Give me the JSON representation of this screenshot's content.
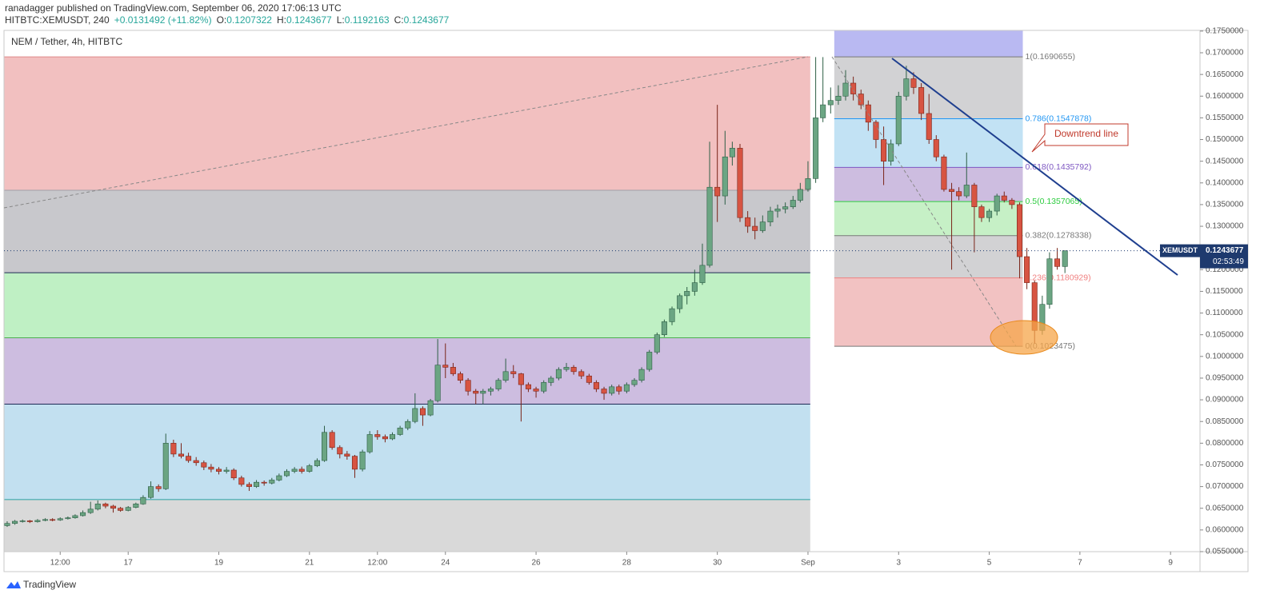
{
  "header": {
    "published": "ranadagger published on TradingView.com, September 06, 2020 17:06:13 UTC",
    "symbol": "HITBTC:XEMUSDT, 240",
    "change": "+0.0131492 (+11.82%)",
    "ohlc": [
      {
        "key": "O:",
        "value": "0.1207322"
      },
      {
        "key": "H:",
        "value": "0.1243677"
      },
      {
        "key": "L:",
        "value": "0.1192163"
      },
      {
        "key": "C:",
        "value": "0.1243677"
      }
    ]
  },
  "footer": {
    "brand": "TradingView"
  },
  "chart_data": {
    "type": "candlestick",
    "title": "NEM / Tether, 4h, HITBTC",
    "up_color": "#6ba583",
    "down_color": "#d75442",
    "xlim": [
      14.26,
      40.65
    ],
    "xticks": [
      {
        "value": 15.5,
        "label": "12:00"
      },
      17,
      19,
      21,
      {
        "value": 22.5,
        "label": "12:00"
      },
      24,
      26,
      28,
      30,
      {
        "value": 32,
        "label": "Sep"
      },
      {
        "value": 34,
        "label": "3"
      },
      {
        "value": 36,
        "label": "5"
      },
      {
        "value": 38,
        "label": "7"
      },
      {
        "value": 40,
        "label": "9"
      }
    ],
    "ylim": [
      0.055,
      0.17516
    ],
    "yticks": [
      {
        "value": 0.055,
        "label": "0.0550000"
      },
      {
        "value": 0.06,
        "label": "0.0600000"
      },
      {
        "value": 0.065,
        "label": "0.0650000"
      },
      {
        "value": 0.07,
        "label": "0.0700000"
      },
      {
        "value": 0.075,
        "label": "0.0750000"
      },
      {
        "value": 0.08,
        "label": "0.0800000"
      },
      {
        "value": 0.085,
        "label": "0.0850000"
      },
      {
        "value": 0.09,
        "label": "0.0900000"
      },
      {
        "value": 0.095,
        "label": "0.0950000"
      },
      {
        "value": 0.1,
        "label": "0.1000000"
      },
      {
        "value": 0.105,
        "label": "0.1050000"
      },
      {
        "value": 0.11,
        "label": "0.1100000"
      },
      {
        "value": 0.115,
        "label": "0.1150000"
      },
      {
        "value": 0.12,
        "label": "0.1200000"
      },
      {
        "value": 0.125,
        "label": "0.1250000"
      },
      {
        "value": 0.13,
        "label": "0.1300000"
      },
      {
        "value": 0.135,
        "label": "0.1350000"
      },
      {
        "value": 0.14,
        "label": "0.1400000"
      },
      {
        "value": 0.145,
        "label": "0.1450000"
      },
      {
        "value": 0.15,
        "label": "0.1500000"
      },
      {
        "value": 0.155,
        "label": "0.1550000"
      },
      {
        "value": 0.16,
        "label": "0.1600000"
      },
      {
        "value": 0.165,
        "label": "0.1650000"
      },
      {
        "value": 0.17,
        "label": "0.1700000"
      },
      {
        "value": 0.175,
        "label": "0.1750000"
      }
    ],
    "grid": false,
    "last_price": {
      "name": "XEMUSDT",
      "value": 0.1243677,
      "countdown": "02:53:49",
      "color": "#1e3a6e"
    },
    "left_fib": {
      "x_end": 32.05,
      "levels": [
        0.1690655,
        0.1383,
        0.1193,
        0.1043,
        0.089,
        0.067
      ],
      "fills": [
        "#f2c0c0",
        "#c8c8cc",
        "#bff0c4",
        "#cdbde0",
        "#c2e0f0",
        "#d9d9d9"
      ],
      "lines": [
        "#e08a8a",
        "#a0a0a8",
        "#1e2a55",
        "#4caf50",
        "#1e2a55",
        "#2a9fa0"
      ]
    },
    "right_fib": {
      "x": [
        32.58,
        36.74
      ],
      "top_fill": "#b9b9f2",
      "levels": [
        {
          "label": "1(0.1690655)",
          "value": 0.1690655,
          "color": "#787878",
          "fill": "#d2d2d4"
        },
        {
          "label": "0.786(0.1547878)",
          "value": 0.1547878,
          "color": "#2196f3",
          "fill": "#c2e2f4"
        },
        {
          "label": "0.618(0.1435792)",
          "value": 0.1435792,
          "color": "#7e57c2",
          "fill": "#cdbde0"
        },
        {
          "label": "0.5(0.1357065)",
          "value": 0.1357065,
          "color": "#2ecc40",
          "fill": "#c6f0c6"
        },
        {
          "label": "0.382(0.1278338)",
          "value": 0.1278338,
          "color": "#787878",
          "fill": "#d2d2d4"
        },
        {
          "label": "0.236(0.1180929)",
          "value": 0.1180929,
          "color": "#f08080",
          "fill": "#f2c2c2"
        },
        {
          "label": "0(0.1023475)",
          "value": 0.1023475,
          "color": "#787878",
          "fill": "none"
        }
      ]
    },
    "annotation": "Downtrend line",
    "candles": [
      [
        14.33,
        0.061,
        0.062,
        0.0607,
        0.0615
      ],
      [
        14.5,
        0.0615,
        0.0623,
        0.0612,
        0.062
      ],
      [
        14.67,
        0.062,
        0.0624,
        0.0617,
        0.0621
      ],
      [
        14.83,
        0.0621,
        0.0623,
        0.0616,
        0.0619
      ],
      [
        15,
        0.0619,
        0.0625,
        0.0617,
        0.0622
      ],
      [
        15.17,
        0.0622,
        0.0627,
        0.062,
        0.0624
      ],
      [
        15.33,
        0.0624,
        0.0627,
        0.062,
        0.0623
      ],
      [
        15.5,
        0.0623,
        0.0629,
        0.0621,
        0.0626
      ],
      [
        15.67,
        0.0626,
        0.0631,
        0.0624,
        0.0628
      ],
      [
        15.83,
        0.0628,
        0.0636,
        0.0626,
        0.0633
      ],
      [
        16,
        0.0633,
        0.0645,
        0.0631,
        0.064
      ],
      [
        16.17,
        0.064,
        0.0665,
        0.0637,
        0.0648
      ],
      [
        16.33,
        0.0648,
        0.0668,
        0.0645,
        0.066
      ],
      [
        16.5,
        0.066,
        0.0663,
        0.065,
        0.0655
      ],
      [
        16.67,
        0.0655,
        0.0658,
        0.064,
        0.065
      ],
      [
        16.83,
        0.065,
        0.0653,
        0.0642,
        0.0645
      ],
      [
        17,
        0.0645,
        0.0655,
        0.0643,
        0.0652
      ],
      [
        17.17,
        0.0652,
        0.0663,
        0.065,
        0.066
      ],
      [
        17.33,
        0.066,
        0.068,
        0.0658,
        0.0675
      ],
      [
        17.5,
        0.0675,
        0.0712,
        0.0672,
        0.07
      ],
      [
        17.67,
        0.07,
        0.0705,
        0.0688,
        0.0695
      ],
      [
        17.83,
        0.0695,
        0.0822,
        0.0692,
        0.08
      ],
      [
        18,
        0.08,
        0.0808,
        0.0768,
        0.0775
      ],
      [
        18.17,
        0.0775,
        0.08,
        0.0765,
        0.077
      ],
      [
        18.33,
        0.077,
        0.0778,
        0.0755,
        0.076
      ],
      [
        18.5,
        0.076,
        0.0768,
        0.0748,
        0.0755
      ],
      [
        18.67,
        0.0755,
        0.076,
        0.0738,
        0.0745
      ],
      [
        18.83,
        0.0745,
        0.0752,
        0.0733,
        0.074
      ],
      [
        19,
        0.074,
        0.0745,
        0.0728,
        0.0735
      ],
      [
        19.17,
        0.0735,
        0.0745,
        0.073,
        0.0738
      ],
      [
        19.33,
        0.0738,
        0.0742,
        0.0715,
        0.072
      ],
      [
        19.5,
        0.072,
        0.0725,
        0.07,
        0.0705
      ],
      [
        19.67,
        0.0705,
        0.071,
        0.069,
        0.07
      ],
      [
        19.83,
        0.07,
        0.0715,
        0.0697,
        0.071
      ],
      [
        20,
        0.071,
        0.0714,
        0.0702,
        0.0708
      ],
      [
        20.17,
        0.0708,
        0.072,
        0.0705,
        0.0715
      ],
      [
        20.33,
        0.0715,
        0.073,
        0.0712,
        0.0725
      ],
      [
        20.5,
        0.0725,
        0.074,
        0.0722,
        0.0735
      ],
      [
        20.67,
        0.0735,
        0.0745,
        0.0731,
        0.074
      ],
      [
        20.83,
        0.074,
        0.0746,
        0.073,
        0.0735
      ],
      [
        21,
        0.0735,
        0.0752,
        0.0732,
        0.0748
      ],
      [
        21.17,
        0.0748,
        0.0765,
        0.0745,
        0.076
      ],
      [
        21.33,
        0.076,
        0.084,
        0.0757,
        0.0825
      ],
      [
        21.5,
        0.0825,
        0.083,
        0.0785,
        0.079
      ],
      [
        21.67,
        0.079,
        0.0795,
        0.0765,
        0.0775
      ],
      [
        21.83,
        0.0775,
        0.0782,
        0.0762,
        0.077
      ],
      [
        22,
        0.077,
        0.0773,
        0.072,
        0.074
      ],
      [
        22.17,
        0.074,
        0.0785,
        0.0735,
        0.078
      ],
      [
        22.33,
        0.078,
        0.0828,
        0.0776,
        0.082
      ],
      [
        22.5,
        0.082,
        0.083,
        0.0808,
        0.0815
      ],
      [
        22.67,
        0.0815,
        0.082,
        0.0802,
        0.081
      ],
      [
        22.83,
        0.081,
        0.0825,
        0.0807,
        0.082
      ],
      [
        23,
        0.082,
        0.084,
        0.0817,
        0.0835
      ],
      [
        23.17,
        0.0835,
        0.0855,
        0.083,
        0.085
      ],
      [
        23.33,
        0.085,
        0.0915,
        0.0846,
        0.088
      ],
      [
        23.5,
        0.088,
        0.0885,
        0.084,
        0.0865
      ],
      [
        23.67,
        0.0865,
        0.0902,
        0.0862,
        0.0898
      ],
      [
        23.83,
        0.0898,
        0.104,
        0.0894,
        0.098
      ],
      [
        24,
        0.098,
        0.103,
        0.095,
        0.0975
      ],
      [
        24.17,
        0.0975,
        0.0985,
        0.0955,
        0.096
      ],
      [
        24.33,
        0.096,
        0.0965,
        0.0938,
        0.0945
      ],
      [
        24.5,
        0.0945,
        0.095,
        0.091,
        0.092
      ],
      [
        24.67,
        0.092,
        0.0925,
        0.089,
        0.0915
      ],
      [
        24.83,
        0.0915,
        0.0925,
        0.089,
        0.092
      ],
      [
        25,
        0.092,
        0.093,
        0.091,
        0.0925
      ],
      [
        25.17,
        0.0925,
        0.095,
        0.092,
        0.0945
      ],
      [
        25.33,
        0.0945,
        0.0995,
        0.094,
        0.0965
      ],
      [
        25.5,
        0.0965,
        0.098,
        0.095,
        0.096
      ],
      [
        25.67,
        0.096,
        0.0962,
        0.085,
        0.0935
      ],
      [
        25.83,
        0.0935,
        0.094,
        0.0918,
        0.0925
      ],
      [
        26,
        0.0925,
        0.093,
        0.0905,
        0.092
      ],
      [
        26.17,
        0.092,
        0.0945,
        0.0915,
        0.094
      ],
      [
        26.33,
        0.094,
        0.0955,
        0.0932,
        0.095
      ],
      [
        26.5,
        0.095,
        0.0975,
        0.0945,
        0.097
      ],
      [
        26.67,
        0.097,
        0.0985,
        0.0965,
        0.0975
      ],
      [
        26.83,
        0.0975,
        0.098,
        0.0958,
        0.0965
      ],
      [
        27,
        0.0965,
        0.097,
        0.0948,
        0.0955
      ],
      [
        27.17,
        0.0955,
        0.096,
        0.0935,
        0.094
      ],
      [
        27.33,
        0.094,
        0.0945,
        0.0918,
        0.0925
      ],
      [
        27.5,
        0.0925,
        0.093,
        0.09,
        0.0915
      ],
      [
        27.67,
        0.0915,
        0.0935,
        0.091,
        0.093
      ],
      [
        27.83,
        0.093,
        0.0935,
        0.0912,
        0.092
      ],
      [
        28,
        0.092,
        0.094,
        0.0915,
        0.0935
      ],
      [
        28.17,
        0.0935,
        0.095,
        0.093,
        0.0945
      ],
      [
        28.33,
        0.0945,
        0.0975,
        0.094,
        0.097
      ],
      [
        28.5,
        0.097,
        0.1015,
        0.0965,
        0.101
      ],
      [
        28.67,
        0.101,
        0.1055,
        0.1005,
        0.105
      ],
      [
        28.83,
        0.105,
        0.1085,
        0.1045,
        0.108
      ],
      [
        29,
        0.108,
        0.1115,
        0.1072,
        0.111
      ],
      [
        29.17,
        0.111,
        0.1145,
        0.11,
        0.114
      ],
      [
        29.33,
        0.114,
        0.116,
        0.112,
        0.115
      ],
      [
        29.5,
        0.115,
        0.12,
        0.114,
        0.117
      ],
      [
        29.67,
        0.117,
        0.126,
        0.1165,
        0.121
      ],
      [
        29.83,
        0.121,
        0.1495,
        0.1205,
        0.139
      ],
      [
        30,
        0.139,
        0.158,
        0.131,
        0.137
      ],
      [
        30.17,
        0.137,
        0.152,
        0.135,
        0.146
      ],
      [
        30.33,
        0.146,
        0.1495,
        0.144,
        0.148
      ],
      [
        30.5,
        0.148,
        0.149,
        0.131,
        0.132
      ],
      [
        30.67,
        0.132,
        0.1335,
        0.1285,
        0.13
      ],
      [
        30.83,
        0.13,
        0.132,
        0.127,
        0.129
      ],
      [
        31,
        0.129,
        0.1325,
        0.1285,
        0.131
      ],
      [
        31.17,
        0.131,
        0.1345,
        0.13,
        0.1335
      ],
      [
        31.33,
        0.1335,
        0.135,
        0.132,
        0.134
      ],
      [
        31.5,
        0.134,
        0.1355,
        0.133,
        0.1345
      ],
      [
        31.67,
        0.1345,
        0.137,
        0.134,
        0.136
      ],
      [
        31.83,
        0.136,
        0.14,
        0.1355,
        0.1385
      ],
      [
        32,
        0.1385,
        0.145,
        0.138,
        0.141
      ],
      [
        32.17,
        0.141,
        0.169,
        0.14,
        0.155
      ],
      [
        32.33,
        0.155,
        0.169,
        0.154,
        0.158
      ],
      [
        32.5,
        0.158,
        0.162,
        0.156,
        0.159
      ],
      [
        32.67,
        0.159,
        0.1625,
        0.158,
        0.16
      ],
      [
        32.83,
        0.16,
        0.166,
        0.159,
        0.163
      ],
      [
        33,
        0.163,
        0.1645,
        0.159,
        0.1605
      ],
      [
        33.17,
        0.1605,
        0.1615,
        0.157,
        0.158
      ],
      [
        33.33,
        0.158,
        0.159,
        0.152,
        0.154
      ],
      [
        33.5,
        0.154,
        0.1545,
        0.148,
        0.15
      ],
      [
        33.67,
        0.15,
        0.153,
        0.1395,
        0.145
      ],
      [
        33.83,
        0.145,
        0.15,
        0.144,
        0.149
      ],
      [
        34,
        0.149,
        0.161,
        0.1485,
        0.16
      ],
      [
        34.17,
        0.16,
        0.167,
        0.159,
        0.164
      ],
      [
        34.33,
        0.164,
        0.1655,
        0.1605,
        0.162
      ],
      [
        34.5,
        0.162,
        0.163,
        0.1545,
        0.156
      ],
      [
        34.67,
        0.156,
        0.1605,
        0.149,
        0.15
      ],
      [
        34.83,
        0.15,
        0.151,
        0.145,
        0.146
      ],
      [
        35,
        0.146,
        0.1465,
        0.138,
        0.1385
      ],
      [
        35.17,
        0.1385,
        0.14,
        0.12,
        0.138
      ],
      [
        35.33,
        0.138,
        0.139,
        0.136,
        0.137
      ],
      [
        35.5,
        0.137,
        0.147,
        0.1365,
        0.1395
      ],
      [
        35.67,
        0.1395,
        0.14,
        0.124,
        0.1345
      ],
      [
        35.83,
        0.1345,
        0.135,
        0.131,
        0.132
      ],
      [
        36,
        0.132,
        0.134,
        0.131,
        0.1335
      ],
      [
        36.17,
        0.1335,
        0.1375,
        0.1325,
        0.137
      ],
      [
        36.33,
        0.137,
        0.138,
        0.1355,
        0.136
      ],
      [
        36.5,
        0.136,
        0.1365,
        0.134,
        0.135
      ],
      [
        36.67,
        0.135,
        0.1355,
        0.118,
        0.123
      ],
      [
        36.83,
        0.123,
        0.125,
        0.1155,
        0.117
      ],
      [
        37,
        0.117,
        0.1175,
        0.103,
        0.106
      ],
      [
        37.17,
        0.106,
        0.114,
        0.105,
        0.112
      ],
      [
        37.33,
        0.112,
        0.124,
        0.111,
        0.1225
      ],
      [
        37.5,
        0.1225,
        0.125,
        0.12,
        0.1207322
      ],
      [
        37.67,
        0.1207322,
        0.1243677,
        0.1192163,
        0.1243677
      ]
    ]
  }
}
